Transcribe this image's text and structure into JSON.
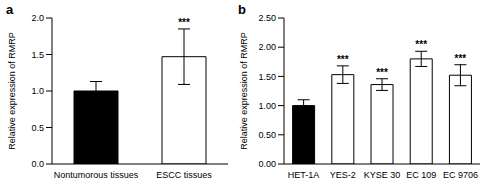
{
  "chart_data": [
    {
      "type": "bar",
      "title": "a",
      "categories": [
        "Nontumorous tissues",
        "ESCC tissues"
      ],
      "values": [
        1.0,
        1.47
      ],
      "errors": [
        0.13,
        0.38
      ],
      "colors": [
        "#000000",
        "#ffffff"
      ],
      "y_label": "Relative expression of RMRP",
      "ylim": [
        0,
        2
      ],
      "yticks": [
        {
          "value": 0,
          "label": "0.0"
        },
        0.5,
        {
          "value": 1,
          "label": "1.0"
        },
        1.5,
        {
          "value": 2,
          "label": "2.0"
        }
      ],
      "grid": false,
      "annotations": [
        {
          "category": "ESCC tissues",
          "text": "***"
        }
      ]
    },
    {
      "type": "bar",
      "title": "b",
      "categories": [
        "HET-1A",
        "YES-2",
        "KYSE 30",
        "EC 109",
        "EC 9706"
      ],
      "values": [
        1.0,
        1.53,
        1.36,
        1.8,
        1.52
      ],
      "errors": [
        0.1,
        0.15,
        0.1,
        0.13,
        0.18
      ],
      "colors": [
        "#000000",
        "#ffffff",
        "#ffffff",
        "#ffffff",
        "#ffffff"
      ],
      "y_label": "Relative expression of RMRP",
      "ylim": [
        0,
        2.5
      ],
      "yticks": [
        {
          "value": 0,
          "label": "0.00"
        },
        {
          "value": 0.5,
          "label": "0.50"
        },
        {
          "value": 1,
          "label": "1.00"
        },
        {
          "value": 1.5,
          "label": "1.50"
        },
        {
          "value": 2,
          "label": "2.00"
        },
        {
          "value": 2.5,
          "label": "2.50"
        }
      ],
      "grid": false,
      "annotations": [
        {
          "category": "YES-2",
          "text": "***"
        },
        {
          "category": "KYSE 30",
          "text": "***"
        },
        {
          "category": "EC 109",
          "text": "***"
        },
        {
          "category": "EC 9706",
          "text": "***"
        }
      ]
    }
  ]
}
